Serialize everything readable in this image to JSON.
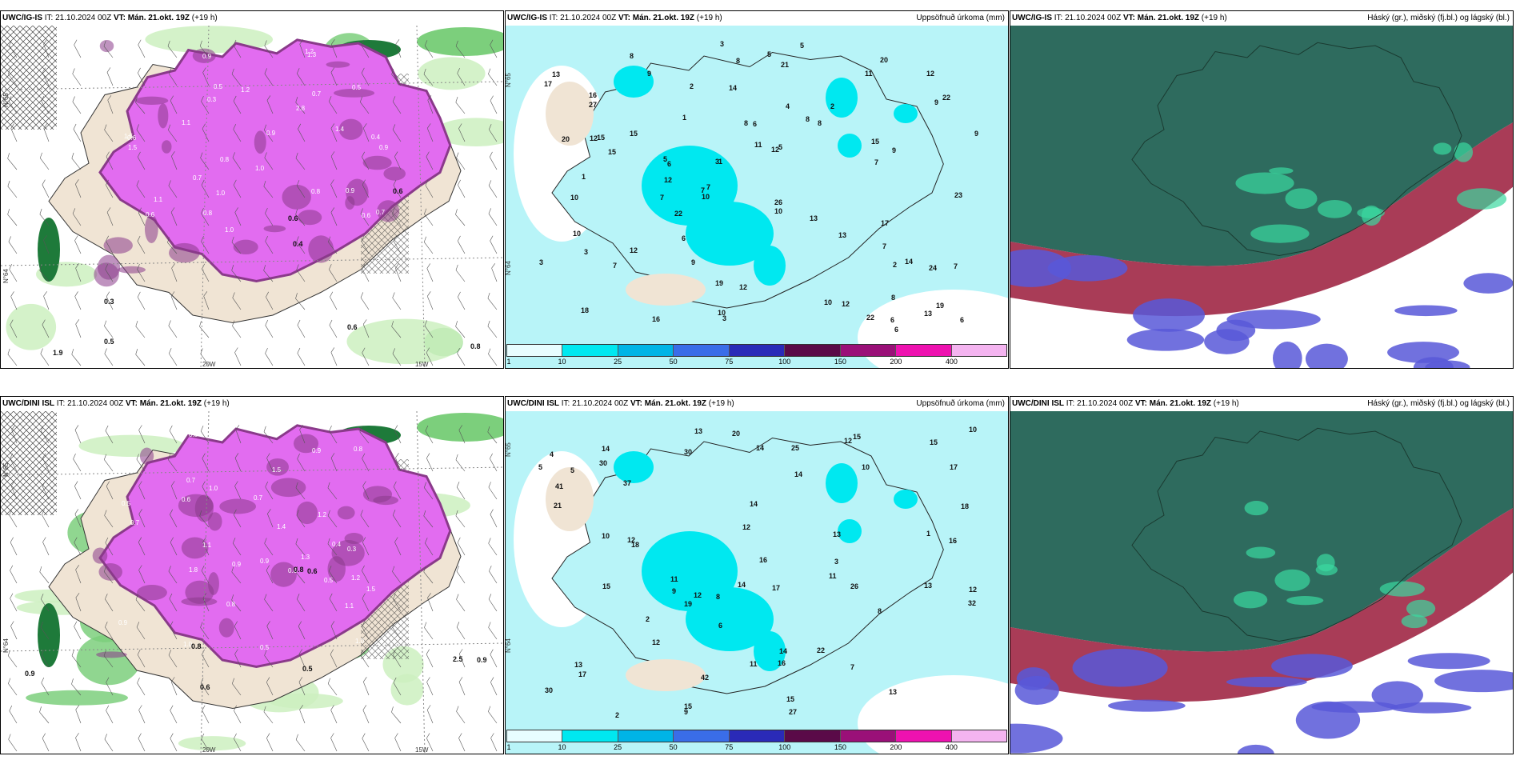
{
  "rows": [
    {
      "panels": [
        {
          "kind": "cloud",
          "model": "UWC/IG-IS",
          "header_rest": "IT: 21.10.2024 00Z",
          "vt_label": "VT: Mán. 21.okt. 19Z",
          "lead": "(+19 h)",
          "right_title": "",
          "axis": {
            "lat": "N°65",
            "lat2": "N°64",
            "lon1": "20W",
            "lon2": "15W"
          },
          "values": [
            "0.7",
            "0.9",
            "1.0",
            "1.5",
            "0.5",
            "0.8",
            "1.1",
            "0.6",
            "1.2",
            "0.3",
            "0.4",
            "2.8",
            "0.9",
            "0.8",
            "0.7",
            "1.0",
            "1.3",
            "0.6",
            "0.5",
            "1.1",
            "0.9",
            "1.4",
            "0.8",
            "0.6",
            "1.0",
            "0.7",
            "1.5",
            "0.9",
            "1.2",
            "0.8",
            "0.6",
            "0.5",
            "0.3",
            "0.4",
            "0.6",
            "1.9",
            "0.6"
          ]
        },
        {
          "kind": "precip",
          "model": "UWC/IG-IS",
          "header_rest": "IT: 21.10.2024 00Z",
          "vt_label": "VT: Mán. 21.okt. 19Z",
          "lead": "(+19 h)",
          "right_title": "Uppsöfnuð úrkoma (mm)",
          "axis": {
            "lat": "N°65",
            "lat2": "N°64"
          },
          "values": [
            "7",
            "10",
            "10",
            "10",
            "9",
            "8",
            "3",
            "3",
            "12",
            "12",
            "14",
            "13",
            "11",
            "13",
            "5",
            "7",
            "8",
            "11",
            "8",
            "15",
            "27",
            "22",
            "17",
            "22",
            "16",
            "8",
            "12",
            "9",
            "7",
            "5",
            "6",
            "7",
            "24",
            "20",
            "9",
            "9",
            "10",
            "6",
            "7",
            "15",
            "12",
            "23",
            "17",
            "15",
            "14",
            "18",
            "15",
            "10",
            "26",
            "21",
            "22",
            "19",
            "19",
            "20",
            "13",
            "16",
            "12",
            "7",
            "4",
            "2",
            "6",
            "5",
            "8",
            "9",
            "10",
            "12",
            "7",
            "6",
            "8",
            "3",
            "3",
            "1",
            "2",
            "13",
            "12",
            "3",
            "1",
            "6",
            "6",
            "5",
            "1",
            "2"
          ]
        },
        {
          "kind": "cloudcover",
          "model": "UWC/IG-IS",
          "header_rest": "IT: 21.10.2024 00Z",
          "vt_label": "VT: Mán. 21.okt. 19Z",
          "lead": "(+19 h)",
          "right_title": "Háský (gr.), miðský (fj.bl.) og lágský (bl.)"
        }
      ]
    },
    {
      "panels": [
        {
          "kind": "cloud",
          "model": "UWC/DINI ISL",
          "header_rest": "IT: 21.10.2024 00Z",
          "vt_label": "VT: Mán. 21.okt. 19Z",
          "lead": "(+19 h)",
          "right_title": "",
          "axis": {
            "lat": "N°65",
            "lat2": "N°64",
            "lon1": "20W",
            "lon2": "15W"
          },
          "values": [
            "0.3",
            "0.9",
            "1.1",
            "1.8",
            "0.7",
            "0.5",
            "1.0",
            "1.3",
            "0.9",
            "0.8",
            "1.2",
            "0.6",
            "0.4",
            "1.5",
            "0.9",
            "1.1",
            "0.7",
            "0.5",
            "1.0",
            "0.8",
            "1.2",
            "0.6",
            "0.9",
            "1.4",
            "0.7",
            "1.0",
            "0.5",
            "0.8",
            "1.5",
            "0.9",
            "0.6",
            "0.8",
            "0.6",
            "0.5",
            "2.5",
            "0.9",
            "0.8"
          ]
        },
        {
          "kind": "precip",
          "model": "UWC/DINI ISL",
          "header_rest": "IT: 21.10.2024 00Z",
          "vt_label": "VT: Mán. 21.okt. 19Z",
          "lead": "(+19 h)",
          "right_title": "Uppsöfnuð úrkoma (mm)",
          "axis": {
            "lat": "N°65",
            "lat2": "N°64"
          },
          "values": [
            "6",
            "9",
            "13",
            "14",
            "15",
            "11",
            "12",
            "17",
            "18",
            "16",
            "11",
            "30",
            "32",
            "22",
            "18",
            "13",
            "15",
            "16",
            "13",
            "27",
            "19",
            "42",
            "30",
            "41",
            "21",
            "14",
            "12",
            "26",
            "25",
            "20",
            "12",
            "15",
            "13",
            "30",
            "37",
            "12",
            "10",
            "14",
            "12",
            "17",
            "15",
            "14",
            "16",
            "10",
            "11",
            "10",
            "9",
            "8",
            "5",
            "7",
            "4",
            "3",
            "2",
            "1",
            "2",
            "13",
            "12",
            "14",
            "8",
            "17",
            "15",
            "14",
            "5"
          ]
        },
        {
          "kind": "cloudcover",
          "model": "UWC/DINI ISL",
          "header_rest": "IT: 21.10.2024 00Z",
          "vt_label": "VT: Mán. 21.okt. 19Z",
          "lead": "(+19 h)",
          "right_title": "Háský (gr.), miðský (fj.bl.) og lágský (bl.)"
        }
      ]
    }
  ],
  "legend": {
    "ticks": [
      "1",
      "10",
      "25",
      "50",
      "75",
      "100",
      "150",
      "200",
      "400"
    ],
    "colors": [
      "#e8fdff",
      "#00e8f0",
      "#00b4e6",
      "#3a6de8",
      "#2a2ab8",
      "#5a0a48",
      "#9a1078",
      "#ee12b0",
      "#f4b4f0"
    ]
  },
  "palette": {
    "sea_precip": "#b8f4f8",
    "land": "#f0e4d4",
    "cloud_magenta": "#e26cf0",
    "cloud_dark": "#8a3a8a",
    "green_light": "#cdf0c0",
    "green_mid": "#7ccf7c",
    "green_dark": "#1e7a3a",
    "teal_cover": "#2e6b5e",
    "red_cover": "#9a1a3a",
    "blue_cover": "#5858d8"
  }
}
